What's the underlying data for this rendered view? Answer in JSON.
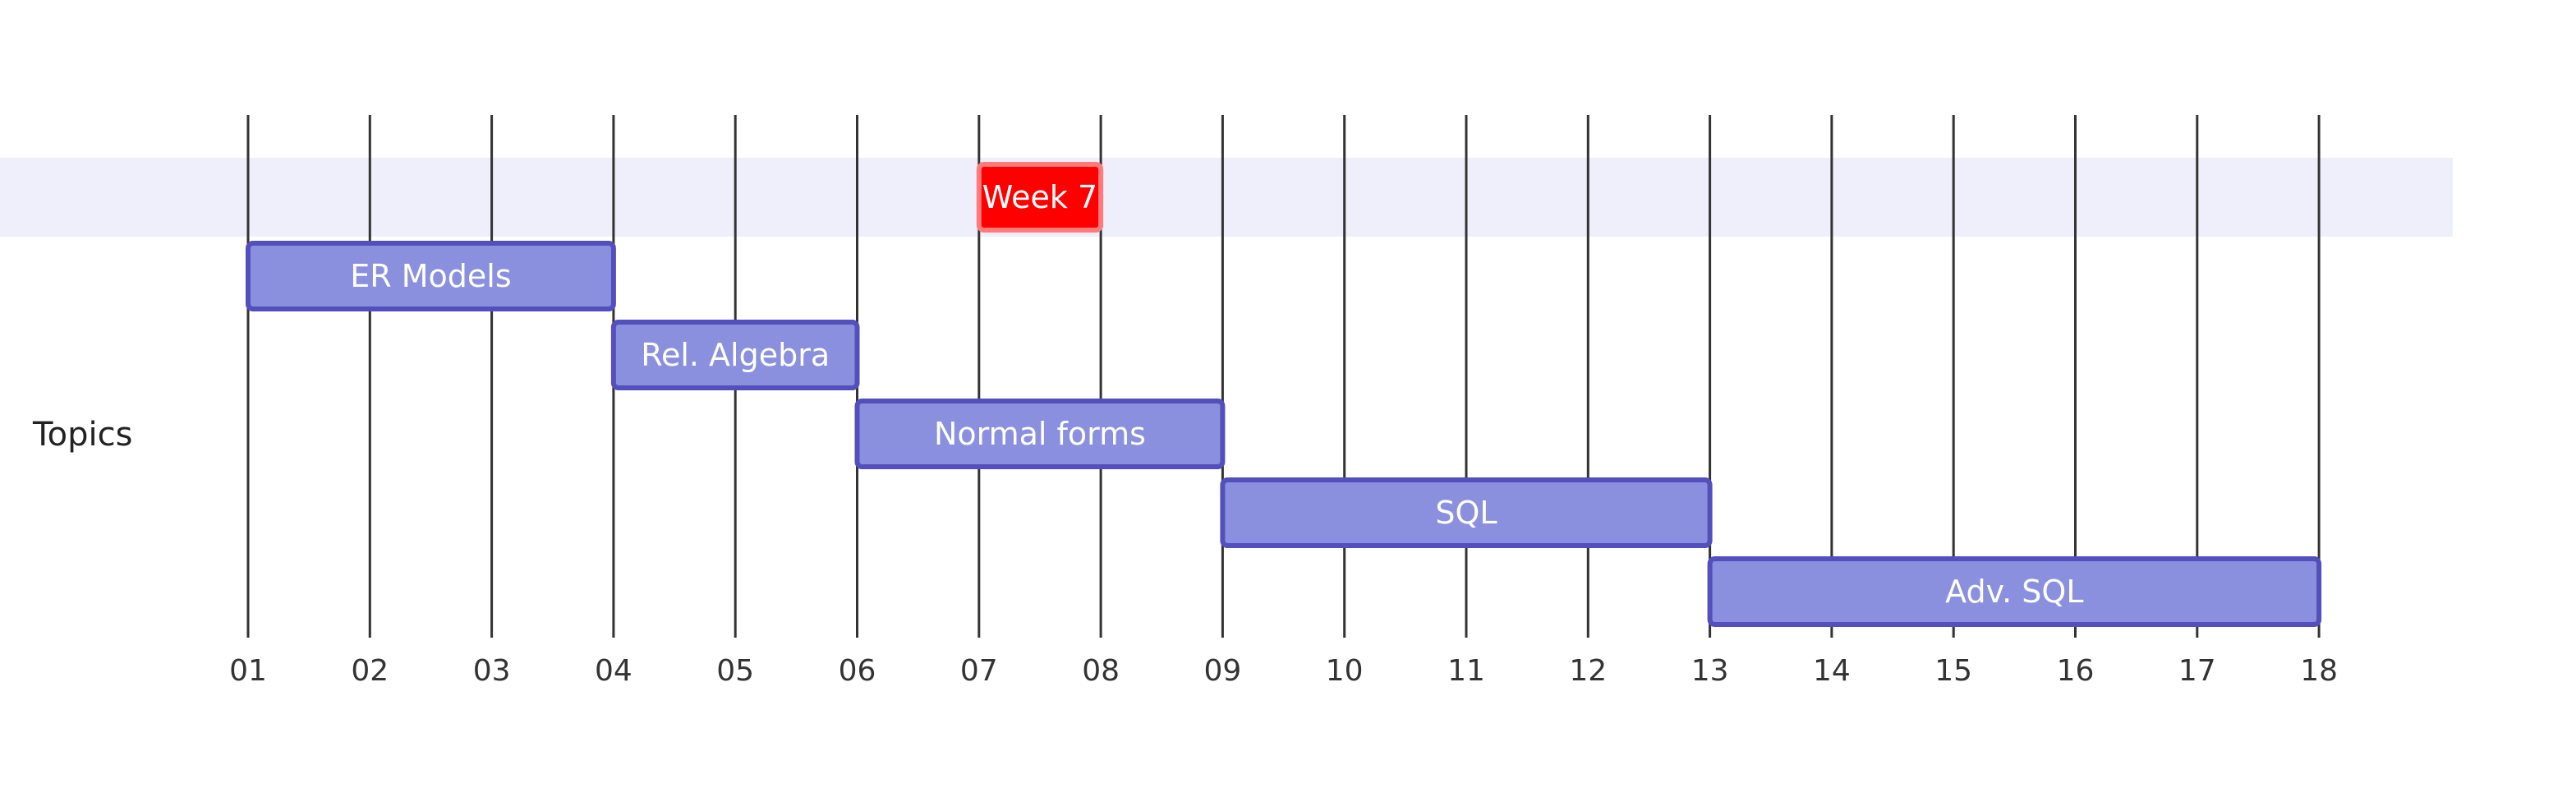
{
  "chart_data": {
    "type": "gantt",
    "x_ticks": [
      "01",
      "02",
      "03",
      "04",
      "05",
      "06",
      "07",
      "08",
      "09",
      "10",
      "11",
      "12",
      "13",
      "14",
      "15",
      "16",
      "17",
      "18"
    ],
    "xlim": [
      1,
      19
    ],
    "sections": [
      {
        "name": "",
        "bg_color": "#efeffc"
      },
      {
        "name": "Topics",
        "bg_color": "#ffffff"
      }
    ],
    "tasks": [
      {
        "label": "Week 7",
        "start": 7,
        "end": 8,
        "section": 0,
        "fill": "#ff0000",
        "stroke": "#ff7b7b"
      },
      {
        "label": "ER Models",
        "start": 1,
        "end": 4,
        "section": 1,
        "fill": "#8a90dd",
        "stroke": "#534fbc"
      },
      {
        "label": "Rel. Algebra",
        "start": 4,
        "end": 6,
        "section": 1,
        "fill": "#8a90dd",
        "stroke": "#534fbc"
      },
      {
        "label": "Normal forms",
        "start": 6,
        "end": 9,
        "section": 1,
        "fill": "#8a90dd",
        "stroke": "#534fbc"
      },
      {
        "label": "SQL",
        "start": 9,
        "end": 13,
        "section": 1,
        "fill": "#8a90dd",
        "stroke": "#534fbc"
      },
      {
        "label": "Adv. SQL",
        "start": 13,
        "end": 18,
        "section": 1,
        "fill": "#8a90dd",
        "stroke": "#534fbc"
      }
    ],
    "grid": true
  }
}
